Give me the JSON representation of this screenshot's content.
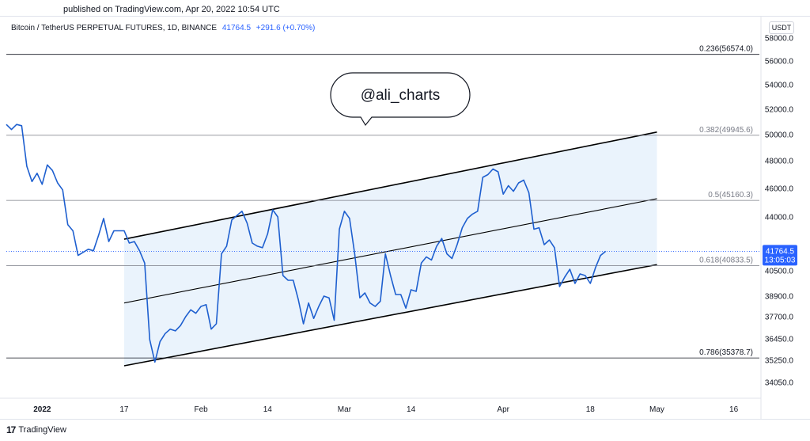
{
  "header": {
    "published": "published on TradingView.com, Apr 20, 2022 10:54 UTC"
  },
  "legend": {
    "symbol": "Bitcoin / TetherUS PERPETUAL FUTURES, 1D, BINANCE",
    "price": "41764.5",
    "change": "+291.6 (+0.70%)"
  },
  "currency": "USDT",
  "footer": {
    "brand": "TradingView",
    "mark": "17"
  },
  "annotation": {
    "text": "@ali_charts"
  },
  "chart_data": {
    "type": "line",
    "title": "",
    "xlabel": "",
    "ylabel": "",
    "y_axis_ticks": [
      {
        "label": "58000.0",
        "value": 58000
      },
      {
        "label": "56000.0",
        "value": 56000
      },
      {
        "label": "54000.0",
        "value": 54000
      },
      {
        "label": "52000.0",
        "value": 52000
      },
      {
        "label": "50000.0",
        "value": 50000
      },
      {
        "label": "48000.0",
        "value": 48000
      },
      {
        "label": "46000.0",
        "value": 46000
      },
      {
        "label": "44000.0",
        "value": 44000
      },
      {
        "label": "40500.0",
        "value": 40500
      },
      {
        "label": "38900.0",
        "value": 38900
      },
      {
        "label": "37700.0",
        "value": 37700
      },
      {
        "label": "36450.0",
        "value": 36450
      },
      {
        "label": "35250.0",
        "value": 35250
      },
      {
        "label": "34050.0",
        "value": 34050
      }
    ],
    "x_axis_ticks": [
      {
        "label": "2022",
        "x": 1
      },
      {
        "label": "17",
        "x": 17
      },
      {
        "label": "Feb",
        "x": 32
      },
      {
        "label": "14",
        "x": 45
      },
      {
        "label": "Mar",
        "x": 60
      },
      {
        "label": "14",
        "x": 73
      },
      {
        "label": "Apr",
        "x": 91
      },
      {
        "label": "18",
        "x": 108
      },
      {
        "label": "May",
        "x": 121
      },
      {
        "label": "16",
        "x": 136
      }
    ],
    "x_range": [
      -6,
      141
    ],
    "fib_levels": [
      {
        "label": "0.236(56574.0)",
        "value": 56574.0,
        "color": "#131722"
      },
      {
        "label": "0.382(49945.6)",
        "value": 49945.6,
        "color": "#787b86"
      },
      {
        "label": "0.5(45160.3)",
        "value": 45160.3,
        "color": "#787b86"
      },
      {
        "label": "0.618(40833.5)",
        "value": 40833.5,
        "color": "#787b86"
      },
      {
        "label": "0.786(35378.7)",
        "value": 35378.7,
        "color": "#131722"
      }
    ],
    "channel": {
      "x_start": 17,
      "x_end": 121,
      "upper": [
        42555,
        50200
      ],
      "middle": [
        38500,
        45280
      ],
      "lower": [
        34950,
        40900
      ],
      "fill": "#eaf3fc"
    },
    "current_price": {
      "value": 41764.5,
      "label": "41764.5",
      "countdown": "13:05:03",
      "color": "#2962ff"
    },
    "series": [
      {
        "color": "#1e5fcf",
        "points": [
          [
            -6,
            50800
          ],
          [
            -5,
            50400
          ],
          [
            -4,
            50800
          ],
          [
            -3,
            50700
          ],
          [
            -2,
            47600
          ],
          [
            -1,
            46500
          ],
          [
            0,
            47100
          ],
          [
            1,
            46300
          ],
          [
            2,
            47700
          ],
          [
            3,
            47300
          ],
          [
            4,
            46400
          ],
          [
            5,
            45900
          ],
          [
            6,
            43500
          ],
          [
            7,
            43100
          ],
          [
            8,
            41500
          ],
          [
            9,
            41700
          ],
          [
            10,
            41900
          ],
          [
            11,
            41800
          ],
          [
            12,
            42800
          ],
          [
            13,
            43900
          ],
          [
            14,
            42400
          ],
          [
            15,
            43100
          ],
          [
            16,
            43100
          ],
          [
            17,
            43100
          ],
          [
            18,
            42300
          ],
          [
            19,
            42400
          ],
          [
            20,
            41800
          ],
          [
            21,
            41000
          ],
          [
            22,
            36400
          ],
          [
            23,
            35150
          ],
          [
            24,
            36300
          ],
          [
            25,
            36750
          ],
          [
            26,
            37000
          ],
          [
            27,
            36900
          ],
          [
            28,
            37200
          ],
          [
            29,
            37700
          ],
          [
            30,
            38100
          ],
          [
            31,
            37900
          ],
          [
            32,
            38300
          ],
          [
            33,
            38400
          ],
          [
            34,
            37000
          ],
          [
            35,
            37300
          ],
          [
            36,
            41600
          ],
          [
            37,
            42100
          ],
          [
            38,
            43800
          ],
          [
            39,
            44100
          ],
          [
            40,
            44400
          ],
          [
            41,
            43600
          ],
          [
            42,
            42300
          ],
          [
            43,
            42100
          ],
          [
            44,
            42000
          ],
          [
            45,
            42900
          ],
          [
            46,
            44500
          ],
          [
            47,
            44000
          ],
          [
            48,
            40200
          ],
          [
            49,
            39900
          ],
          [
            50,
            39900
          ],
          [
            51,
            38700
          ],
          [
            52,
            37300
          ],
          [
            53,
            38500
          ],
          [
            54,
            37600
          ],
          [
            55,
            38300
          ],
          [
            56,
            38900
          ],
          [
            57,
            38800
          ],
          [
            58,
            37500
          ],
          [
            59,
            43200
          ],
          [
            60,
            44400
          ],
          [
            61,
            43900
          ],
          [
            62,
            41600
          ],
          [
            63,
            38800
          ],
          [
            64,
            39100
          ],
          [
            65,
            38500
          ],
          [
            66,
            38300
          ],
          [
            67,
            38600
          ],
          [
            68,
            41600
          ],
          [
            69,
            40200
          ],
          [
            70,
            39000
          ],
          [
            71,
            39000
          ],
          [
            72,
            38200
          ],
          [
            73,
            39300
          ],
          [
            74,
            39200
          ],
          [
            75,
            41000
          ],
          [
            76,
            41400
          ],
          [
            77,
            41200
          ],
          [
            78,
            42100
          ],
          [
            79,
            42600
          ],
          [
            80,
            41600
          ],
          [
            81,
            41300
          ],
          [
            82,
            42200
          ],
          [
            83,
            43300
          ],
          [
            84,
            43900
          ],
          [
            85,
            44200
          ],
          [
            86,
            44400
          ],
          [
            87,
            46800
          ],
          [
            88,
            47000
          ],
          [
            89,
            47400
          ],
          [
            90,
            47200
          ],
          [
            91,
            45600
          ],
          [
            92,
            46200
          ],
          [
            93,
            45800
          ],
          [
            94,
            46400
          ],
          [
            95,
            46600
          ],
          [
            96,
            45700
          ],
          [
            97,
            43200
          ],
          [
            98,
            43300
          ],
          [
            99,
            42200
          ],
          [
            100,
            42500
          ],
          [
            101,
            42000
          ],
          [
            102,
            39500
          ],
          [
            103,
            40100
          ],
          [
            104,
            40600
          ],
          [
            105,
            39700
          ],
          [
            106,
            40300
          ],
          [
            107,
            40200
          ],
          [
            108,
            39700
          ],
          [
            109,
            40700
          ],
          [
            110,
            41500
          ],
          [
            111,
            41764.5
          ]
        ]
      }
    ]
  }
}
